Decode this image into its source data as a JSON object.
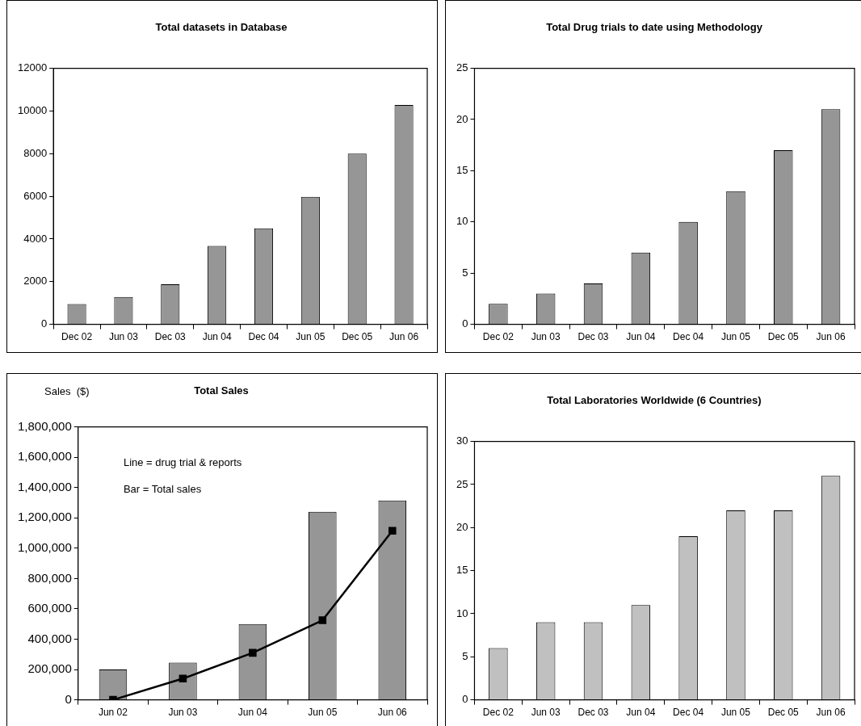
{
  "chart_data": [
    {
      "type": "bar",
      "title": "Total datasets in Database",
      "categories": [
        "Dec 02",
        "Jun 03",
        "Dec 03",
        "Jun 04",
        "Dec 04",
        "Jun 05",
        "Dec 05",
        "Jun 06"
      ],
      "values": [
        950,
        1280,
        1880,
        3680,
        4500,
        5980,
        8000,
        10280
      ],
      "color": "#969696",
      "ylim": [
        0,
        12000
      ],
      "yticks": [
        0,
        2000,
        4000,
        6000,
        8000,
        10000,
        12000
      ]
    },
    {
      "type": "bar",
      "title": "Total Drug trials to date using Methodology",
      "categories": [
        "Dec 02",
        "Jun 03",
        "Dec 03",
        "Jun 04",
        "Dec 04",
        "Jun 05",
        "Dec 05",
        "Jun 06"
      ],
      "values": [
        2,
        3,
        4,
        7,
        10,
        13,
        17,
        21
      ],
      "color": "#969696",
      "ylim": [
        0,
        25
      ],
      "yticks": [
        0,
        5,
        10,
        15,
        20,
        25
      ]
    },
    {
      "type": "bar",
      "title": "Total Sales",
      "ylabel": "Sales  ($)",
      "categories": [
        "Jun 02",
        "Jun 03",
        "Jun 04",
        "Jun 05",
        "Jun 06"
      ],
      "marker": "square",
      "series": [
        {
          "type": "bar",
          "color": "#969696",
          "values": [
            200000,
            245000,
            500000,
            1240000,
            1315000
          ]
        },
        {
          "type": "line",
          "color": "#000000",
          "values": [
            0,
            140000,
            310000,
            525000,
            1115000
          ]
        }
      ],
      "ylim": [
        0,
        1800000
      ],
      "yticks": [
        {
          "value": 0,
          "label": "0"
        },
        {
          "value": 200000,
          "label": "200,000"
        },
        {
          "value": 400000,
          "label": "400,000"
        },
        {
          "value": 600000,
          "label": "600,000"
        },
        {
          "value": 800000,
          "label": "800,000"
        },
        {
          "value": 1000000,
          "label": "1,000,000"
        },
        {
          "value": 1200000,
          "label": "1,200,000"
        },
        {
          "value": 1400000,
          "label": "1,400,000"
        },
        {
          "value": 1600000,
          "label": "1,600,000"
        },
        {
          "value": 1800000,
          "label": "1,800,000"
        }
      ],
      "annotations": [
        "Line = drug trial & reports",
        "Bar = Total sales"
      ]
    },
    {
      "type": "bar",
      "title": "Total Laboratories Worldwide (6 Countries)",
      "categories": [
        "Dec 02",
        "Jun 03",
        "Dec 03",
        "Jun 04",
        "Dec 04",
        "Jun 05",
        "Dec 05",
        "Jun 06"
      ],
      "values": [
        6,
        9,
        9,
        11,
        19,
        22,
        22,
        26
      ],
      "color": "#c0c0c0",
      "ylim": [
        0,
        30
      ],
      "yticks": [
        0,
        5,
        10,
        15,
        20,
        25,
        30
      ]
    }
  ]
}
